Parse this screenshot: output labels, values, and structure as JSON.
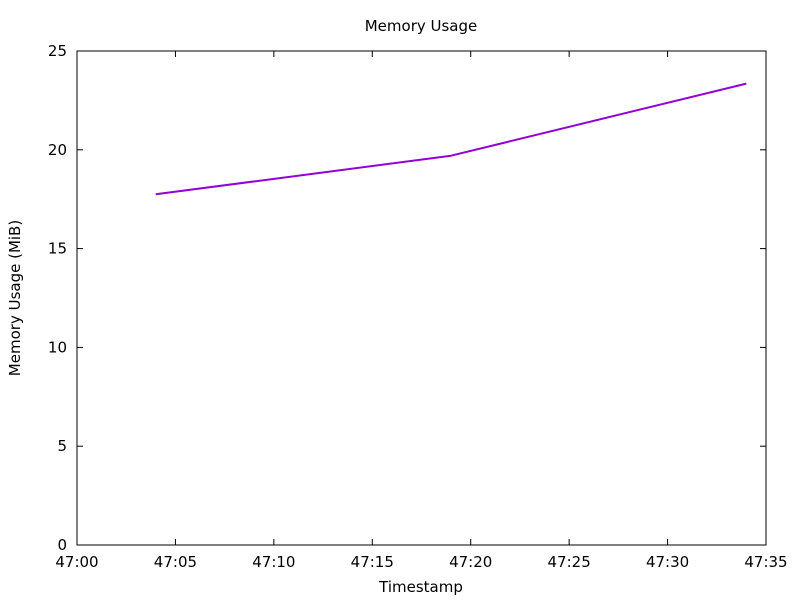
{
  "chart_data": {
    "type": "line",
    "title": "Memory Usage",
    "xlabel": "Timestamp",
    "ylabel": "Memory Usage (MiB)",
    "xlim": [
      "47:00",
      "47:35"
    ],
    "ylim": [
      0,
      25
    ],
    "x_ticks": [
      "47:00",
      "47:05",
      "47:10",
      "47:15",
      "47:20",
      "47:25",
      "47:30",
      "47:35"
    ],
    "y_ticks": [
      0,
      5,
      10,
      15,
      20,
      25
    ],
    "grid": false,
    "legend": "none",
    "series": [
      {
        "color": "#9400d3",
        "x": [
          "47:04",
          "47:19",
          "47:34"
        ],
        "y": [
          17.75,
          19.7,
          23.35
        ]
      }
    ]
  }
}
